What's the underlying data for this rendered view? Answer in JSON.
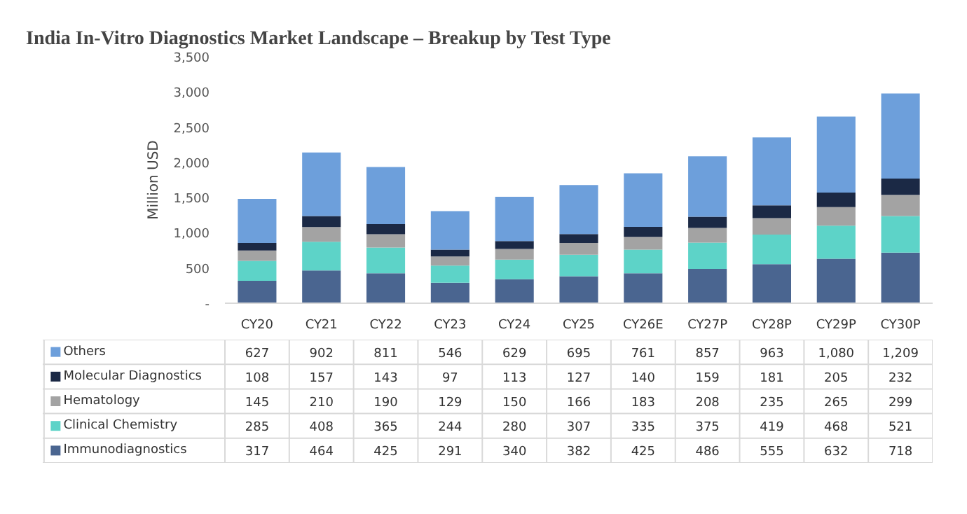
{
  "chart_data": {
    "type": "bar",
    "title": "India In-Vitro Diagnostics Market Landscape – Breakup by Test Type",
    "ylabel": "Million USD",
    "stacked": true,
    "data_labels": true,
    "legend": "bottom",
    "categories": [
      "CY20",
      "CY21",
      "CY22",
      "CY23",
      "CY24",
      "CY25",
      "CY26E",
      "CY27P",
      "CY28P",
      "CY29P",
      "CY30P"
    ],
    "ylim": [
      0,
      3500
    ],
    "yticks": [
      {
        "value": 0,
        "label": "-"
      },
      {
        "value": 500,
        "label": "500"
      },
      {
        "value": 1000,
        "label": "1,000"
      },
      {
        "value": 1500,
        "label": "1,500"
      },
      {
        "value": 2000,
        "label": "2,000"
      },
      {
        "value": 2500,
        "label": "2,500"
      },
      {
        "value": 3000,
        "label": "3,000"
      },
      {
        "value": 3500,
        "label": "3,500"
      }
    ],
    "series": [
      {
        "name": "Immunodiagnostics",
        "color": "#4a6590",
        "values": [
          317,
          464,
          425,
          291,
          340,
          382,
          425,
          486,
          555,
          632,
          718
        ],
        "value_labels": [
          "317",
          "464",
          "425",
          "291",
          "340",
          "382",
          "425",
          "486",
          "555",
          "632",
          "718"
        ]
      },
      {
        "name": "Clinical Chemistry",
        "color": "#5dd3c8",
        "values": [
          285,
          408,
          365,
          244,
          280,
          307,
          335,
          375,
          419,
          468,
          521
        ],
        "value_labels": [
          "285",
          "408",
          "365",
          "244",
          "280",
          "307",
          "335",
          "375",
          "419",
          "468",
          "521"
        ]
      },
      {
        "name": "Hematology",
        "color": "#a3a3a3",
        "values": [
          145,
          210,
          190,
          129,
          150,
          166,
          183,
          208,
          235,
          265,
          299
        ],
        "value_labels": [
          "145",
          "210",
          "190",
          "129",
          "150",
          "166",
          "183",
          "208",
          "235",
          "265",
          "299"
        ]
      },
      {
        "name": "Molecular Diagnostics",
        "color": "#1b2945",
        "values": [
          108,
          157,
          143,
          97,
          113,
          127,
          140,
          159,
          181,
          205,
          232
        ],
        "value_labels": [
          "108",
          "157",
          "143",
          "97",
          "113",
          "127",
          "140",
          "159",
          "181",
          "205",
          "232"
        ]
      },
      {
        "name": "Others",
        "color": "#6d9fdb",
        "values": [
          627,
          902,
          811,
          546,
          629,
          695,
          761,
          857,
          963,
          1080,
          1209
        ],
        "value_labels": [
          "627",
          "902",
          "811",
          "546",
          "629",
          "695",
          "761",
          "857",
          "963",
          "1,080",
          "1,209"
        ]
      }
    ]
  }
}
